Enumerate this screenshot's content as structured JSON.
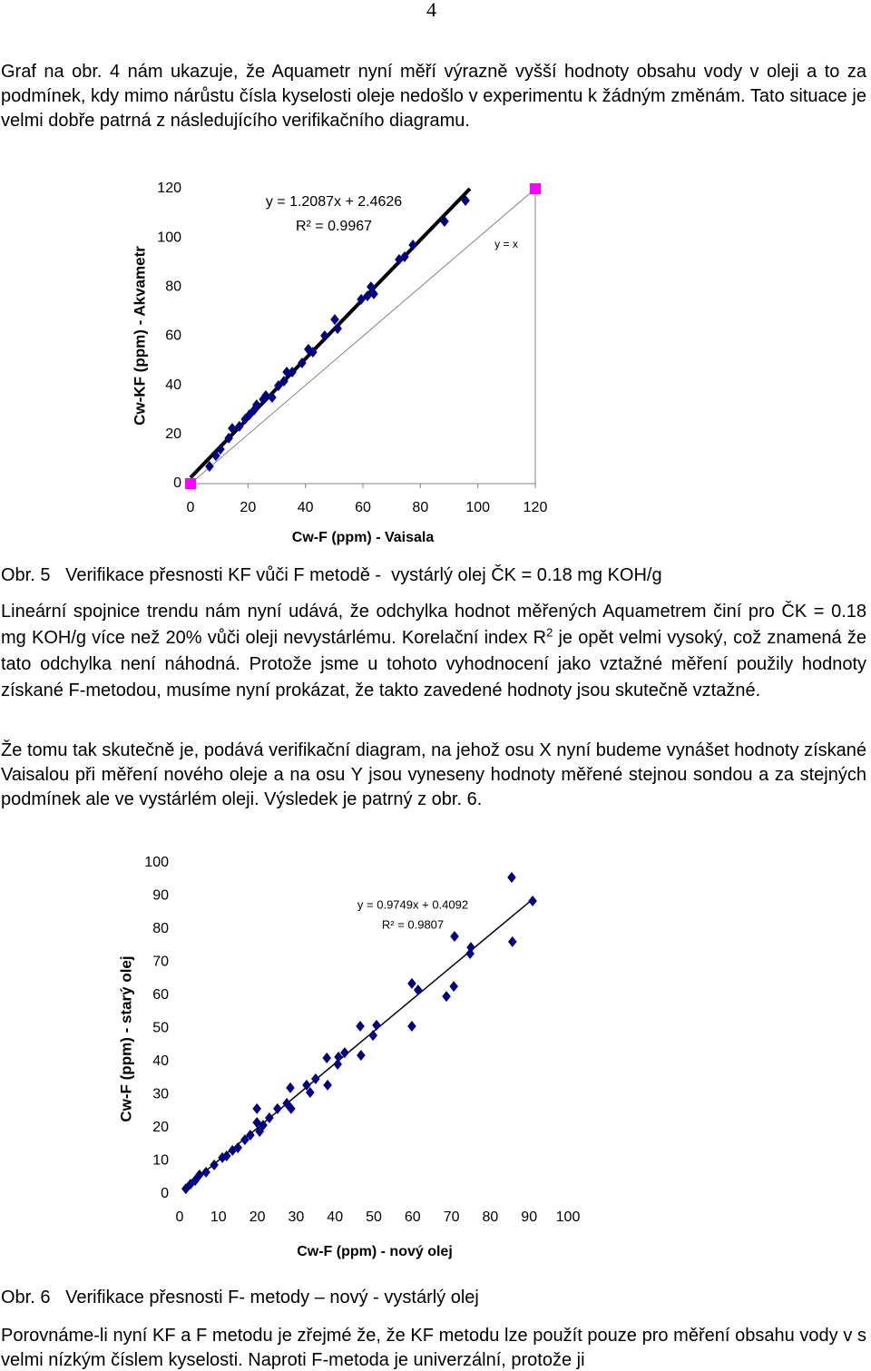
{
  "document": {
    "page_number": "4",
    "paragraphs": [
      [
        "Graf na obr. 4 nám ukazuje, že Aquametr nyní měří výrazně vyšší hodnoty obsahu vody v oleji a to za podmínek, kdy mimo nárůstu čísla kyselosti oleje nedošlo v experimentu k žádným změnám. Tato situace je velmi dobře patrná z následujícího verifikačního diagramu."
      ],
      [
        "Lineární spojnice trendu nám nyní udává, že odchylka hodnot měřených Aquametrem  činí pro ČK = 0.18 mg KOH/g více než 20% vůči oleji nevystárlému. Korelační index R",
        "2",
        " je opět velmi vysoký, což znamená že tato odchylka není náhodná. Protože jsme u tohoto vyhodnocení jako vztažné měření použily hodnoty získané F-metodou, musíme nyní prokázat, že takto zavedené hodnoty jsou skutečně vztažné."
      ],
      [
        "Že tomu tak skutečně je, podává  verifikační diagram, na jehož osu X nyní budeme vynášet hodnoty získané Vaisalou při měření nového oleje a na osu Y jsou vyneseny hodnoty měřené stejnou sondou a za stejných podmínek ale ve vystárlém oleji. Výsledek je patrný z obr. 6."
      ],
      [
        "Porovnáme-li nyní KF a F metodu je zřejmé že, že KF metodu lze použít pouze pro měření obsahu vody v  s velmi nízkým číslem kyselosti. Naproti F-metoda je univerzální, protože ji"
      ]
    ],
    "captions": [
      "Obr. 5   Verifikace přesnosti KF vůči F metodě -  vystárlý olej ČK = 0.18 mg KOH/g",
      "Obr. 6   Verifikace přesnosti F- metody – nový - vystárlý olej"
    ]
  },
  "chart_data": [
    {
      "type": "scatter",
      "x_label": "Cw-F (ppm) - Vaisala",
      "y_label": "Cw-KF (ppm) - Akvametr",
      "xlim": [
        0,
        120
      ],
      "ylim": [
        0,
        120
      ],
      "xticks": [
        0,
        20,
        40,
        60,
        80,
        100,
        120
      ],
      "yticks": [
        0,
        20,
        40,
        60,
        80,
        100,
        120
      ],
      "frame": true,
      "annotations": [
        "y = 1.2087x + 2.4626",
        "R² = 0.9967",
        "y = x"
      ],
      "trendline": {
        "slope": 1.2087,
        "intercept": 2.4626,
        "color": "#000000"
      },
      "series": [
        {
          "color": "#000080",
          "marker": "diamond",
          "x": [
            6.6,
            8.8,
            10.4,
            13.3,
            14.5,
            17,
            19,
            20.5,
            22.1,
            23,
            25.3,
            26.2,
            28.4,
            30.6,
            32.5,
            33.5,
            35.4,
            38.8,
            41,
            42.6,
            46.7,
            50.2,
            51.2,
            59.4,
            61.6,
            62.8,
            63.8,
            72.6,
            74.5,
            77.4,
            88.4,
            95.7
          ],
          "values": [
            7,
            11.4,
            14,
            18.5,
            22.5,
            23.3,
            26.2,
            28,
            29.9,
            32.1,
            34.3,
            35.8,
            35.1,
            39.9,
            41.7,
            45.4,
            45.4,
            49.1,
            54.7,
            53.5,
            60.2,
            66.8,
            63.1,
            75,
            76.4,
            80.1,
            77.2,
            91.2,
            92.3,
            97.1,
            106.7,
            115.2
          ]
        },
        {
          "color": "#ff00ff",
          "marker": "square",
          "line": true,
          "x": [
            0,
            120
          ],
          "values": [
            0,
            120
          ]
        }
      ]
    },
    {
      "type": "scatter",
      "x_label": "Cw-F (ppm) - nový olej",
      "y_label": "Cw-F (ppm) - starý olej",
      "xlim": [
        0,
        100
      ],
      "ylim": [
        0,
        100
      ],
      "xticks": [
        0,
        10,
        20,
        30,
        40,
        50,
        60,
        70,
        80,
        90,
        100
      ],
      "yticks": [
        0,
        10,
        20,
        30,
        40,
        50,
        60,
        70,
        80,
        90,
        100
      ],
      "frame": false,
      "annotations": [
        "y = 0.9749x + 0.4092",
        "R² = 0.9807"
      ],
      "trendline": {
        "slope": 0.9749,
        "intercept": 0.4092,
        "color": "#000000"
      },
      "series": [
        {
          "color": "#000080",
          "marker": "diamond",
          "x": [
            1.6,
            2.8,
            4.0,
            5.1,
            6.8,
            8.9,
            11.0,
            12.1,
            13.6,
            15,
            16.8,
            18.2,
            19.9,
            19.9,
            20.6,
            21.5,
            23.1,
            25.2,
            27.6,
            28.5,
            28.7,
            32.7,
            33.6,
            35,
            37.9,
            38.1,
            40.7,
            40.9,
            42.5,
            46.5,
            46.7,
            49.8,
            50.7,
            59.8,
            59.8,
            61.4,
            68.7,
            70.6,
            70.8,
            74.8,
            75,
            85.5,
            85.7,
            90.9
          ],
          "values": [
            1.6,
            3.0,
            4.1,
            5.8,
            6.6,
            8.8,
            11.0,
            11.5,
            13.2,
            14,
            16.4,
            17.8,
            21.6,
            25.8,
            18.9,
            20.8,
            23,
            25.8,
            27.4,
            32.1,
            25.8,
            32.9,
            30.7,
            34.8,
            41.1,
            32.9,
            39.2,
            41.4,
            42.7,
            50.7,
            41.9,
            47.9,
            51,
            50.7,
            63.6,
            61.6,
            59.7,
            62.7,
            77.8,
            72.6,
            74.5,
            95.6,
            76.2,
            88.5
          ]
        }
      ]
    }
  ]
}
